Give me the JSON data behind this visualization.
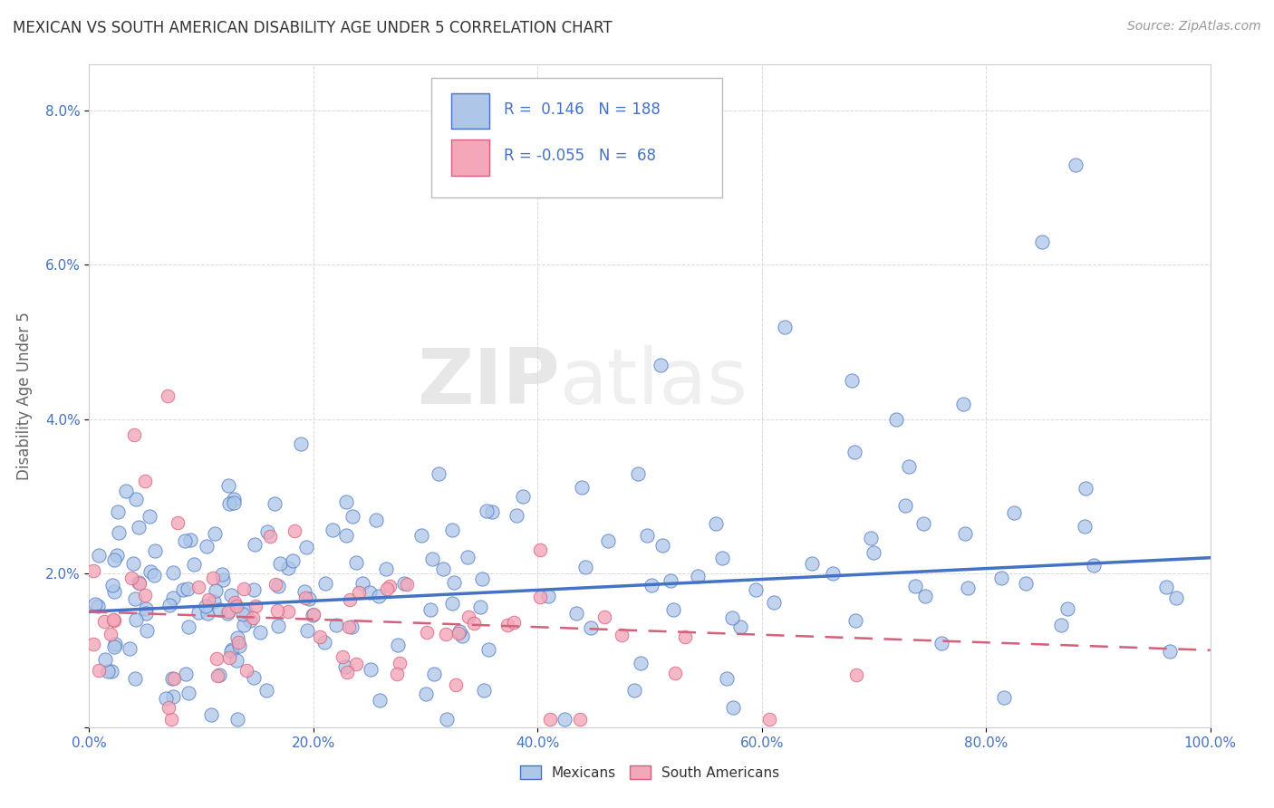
{
  "title": "MEXICAN VS SOUTH AMERICAN DISABILITY AGE UNDER 5 CORRELATION CHART",
  "source": "Source: ZipAtlas.com",
  "ylabel": "Disability Age Under 5",
  "xlim": [
    0,
    1.0
  ],
  "ylim": [
    0,
    0.086
  ],
  "yticks": [
    0.0,
    0.02,
    0.04,
    0.06,
    0.08
  ],
  "ytick_labels": [
    "",
    "2.0%",
    "4.0%",
    "6.0%",
    "8.0%"
  ],
  "xticks": [
    0.0,
    0.2,
    0.4,
    0.6,
    0.8,
    1.0
  ],
  "r_mexican": 0.146,
  "n_mexican": 188,
  "r_south_american": -0.055,
  "n_south_american": 68,
  "mexican_color": "#aec6e8",
  "south_american_color": "#f4a7b9",
  "trend_mexican_color": "#4472c4",
  "trend_south_american_color": "#d4607a",
  "background_color": "#ffffff",
  "mex_trend_start": 0.015,
  "mex_trend_end": 0.022,
  "sa_trend_start": 0.015,
  "sa_trend_end": 0.01,
  "seed": 123
}
